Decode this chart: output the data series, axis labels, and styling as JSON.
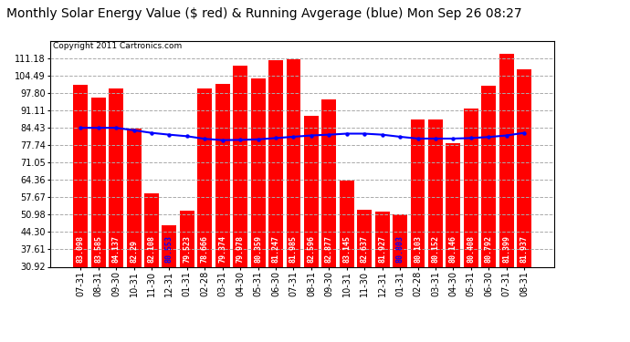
{
  "title": "Monthly Solar Energy Value ($ red) & Running Avgerage (blue) Mon Sep 26 08:27",
  "copyright": "Copyright 2011 Cartronics.com",
  "categories": [
    "07-31",
    "08-31",
    "09-30",
    "10-31",
    "11-30",
    "12-31",
    "01-31",
    "02-28",
    "03-31",
    "04-30",
    "05-31",
    "06-30",
    "07-31",
    "08-31",
    "09-30",
    "10-31",
    "11-30",
    "12-31",
    "01-31",
    "02-28",
    "03-31",
    "04-30",
    "05-31",
    "06-30",
    "07-31",
    "08-31"
  ],
  "bar_values": [
    101.0,
    96.0,
    99.5,
    84.14,
    59.1,
    47.0,
    52.5,
    99.5,
    101.5,
    108.5,
    103.5,
    110.5,
    111.0,
    89.0,
    95.5,
    64.0,
    52.8,
    52.0,
    51.2,
    87.5,
    87.5,
    78.5,
    92.0,
    100.5,
    113.0,
    107.0
  ],
  "bar_labels": [
    "83.098",
    "83.585",
    "84.137",
    "82.29",
    "82.108",
    "80.553",
    "79.523",
    "78.666",
    "79.374",
    "79.978",
    "80.359",
    "81.247",
    "81.985",
    "82.596",
    "82.877",
    "83.145",
    "82.637",
    "81.927",
    "80.803",
    "80.103",
    "80.152",
    "80.146",
    "80.408",
    "80.792",
    "81.399",
    "81.937"
  ],
  "blue_labels": [
    "80.553",
    "80.803"
  ],
  "avg_values": [
    84.43,
    84.43,
    84.43,
    83.5,
    82.5,
    81.8,
    81.2,
    80.2,
    79.7,
    79.8,
    80.0,
    80.5,
    81.0,
    81.5,
    81.8,
    82.2,
    82.2,
    81.8,
    81.0,
    80.3,
    80.3,
    80.3,
    80.5,
    80.9,
    81.5,
    82.5
  ],
  "bar_color": "#ff0000",
  "line_color": "#0000ff",
  "bg_color": "#ffffff",
  "grid_color": "#aaaaaa",
  "ylim_min": 30.92,
  "ylim_max": 117.87,
  "yticks": [
    30.92,
    37.61,
    44.3,
    50.98,
    57.67,
    64.36,
    71.05,
    77.74,
    84.43,
    91.11,
    97.8,
    104.49,
    111.18
  ],
  "title_fontsize": 10,
  "label_fontsize": 6.0,
  "tick_fontsize": 7.0,
  "copy_fontsize": 6.5
}
